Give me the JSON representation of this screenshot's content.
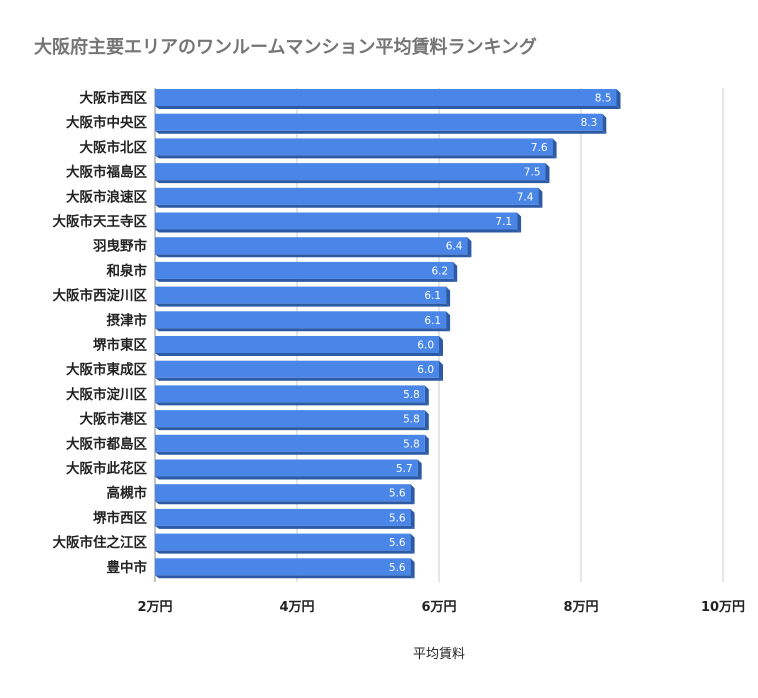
{
  "chart_data": {
    "type": "bar",
    "orientation": "horizontal",
    "title": "大阪府主要エリアのワンルームマンション平均賃料ランキング",
    "xlabel": "平均賃料",
    "ylabel": "",
    "xlim": [
      2,
      10
    ],
    "x_ticks": [
      2,
      4,
      6,
      8,
      10
    ],
    "x_tick_labels": [
      "2万円",
      "4万円",
      "6万円",
      "8万円",
      "10万円"
    ],
    "grid": "vertical",
    "legend": "none",
    "bar_color": "#4a86e8",
    "bar_shade_color": "#2d5aa5",
    "categories": [
      "大阪市西区",
      "大阪市中央区",
      "大阪市北区",
      "大阪市福島区",
      "大阪市浪速区",
      "大阪市天王寺区",
      "羽曳野市",
      "和泉市",
      "大阪市西淀川区",
      "摂津市",
      "堺市東区",
      "大阪市東成区",
      "大阪市淀川区",
      "大阪市港区",
      "大阪市都島区",
      "大阪市此花区",
      "高槻市",
      "堺市西区",
      "大阪市住之江区",
      "豊中市"
    ],
    "values": [
      8.5,
      8.3,
      7.6,
      7.5,
      7.4,
      7.1,
      6.4,
      6.2,
      6.1,
      6.1,
      6.0,
      6.0,
      5.8,
      5.8,
      5.8,
      5.7,
      5.6,
      5.6,
      5.6,
      5.6
    ],
    "value_labels": [
      "8.5",
      "8.3",
      "7.6",
      "7.5",
      "7.4",
      "7.1",
      "6.4",
      "6.2",
      "6.1",
      "6.1",
      "6.0",
      "6.0",
      "5.8",
      "5.8",
      "5.8",
      "5.7",
      "5.6",
      "5.6",
      "5.6",
      "5.6"
    ]
  }
}
